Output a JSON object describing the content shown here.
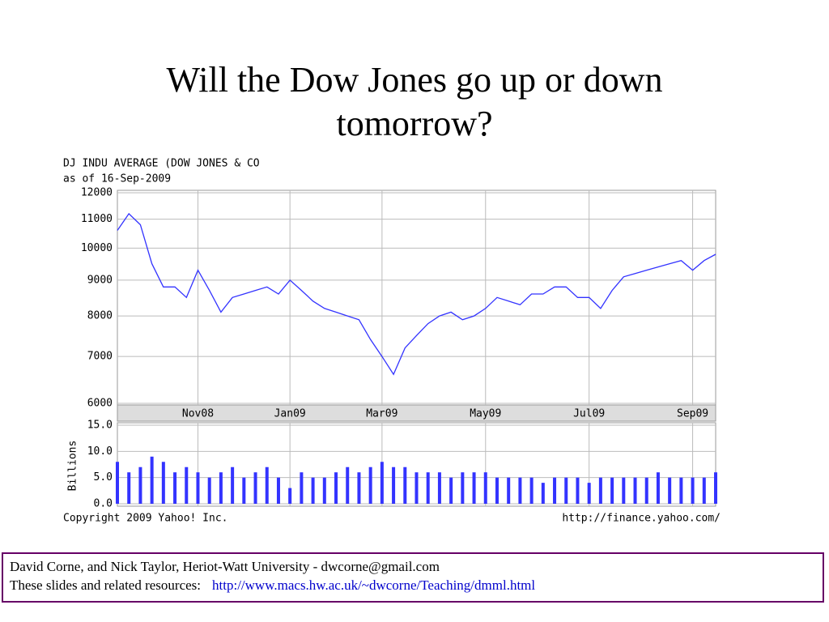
{
  "slide": {
    "title": "Will the Dow Jones go up or down tomorrow?",
    "footer": [
      "David Corne, and Nick Taylor,  Heriot-Watt University  -  dwcorne@gmail.com",
      "These slides and related resources:"
    ],
    "footer_link": "http://www.macs.hw.ac.uk/~dwcorne/Teaching/dmml.html"
  },
  "chart_data": [
    {
      "type": "line",
      "title": "DJ INDU AVERAGE (DOW JONES & CO",
      "subtitle": "as of 16-Sep-2009",
      "categories": [
        null,
        null,
        null,
        null,
        null,
        null,
        null,
        "Nov08",
        null,
        null,
        null,
        null,
        null,
        null,
        null,
        "Jan09",
        null,
        null,
        null,
        null,
        null,
        null,
        null,
        "Mar09",
        null,
        null,
        null,
        null,
        null,
        null,
        null,
        null,
        "May09",
        null,
        null,
        null,
        null,
        null,
        null,
        null,
        null,
        "Jul09",
        null,
        null,
        null,
        null,
        null,
        null,
        null,
        null,
        "Sep09",
        null,
        null
      ],
      "values": [
        10600,
        11200,
        10800,
        9500,
        8800,
        8800,
        8500,
        9300,
        8700,
        8100,
        8500,
        8600,
        8700,
        8800,
        8600,
        9000,
        8700,
        8400,
        8200,
        8100,
        8000,
        7900,
        7400,
        7000,
        6600,
        7200,
        7500,
        7800,
        8000,
        8100,
        7900,
        8000,
        8200,
        8500,
        8400,
        8300,
        8600,
        8600,
        8800,
        8800,
        8500,
        8500,
        8200,
        8700,
        9100,
        9200,
        9300,
        9400,
        9500,
        9600,
        9300,
        9600,
        9800
      ],
      "color": "#3333ff",
      "ylim": [
        6000,
        12000
      ],
      "yticks": [
        6000,
        7000,
        8000,
        9000,
        10000,
        11000,
        12000
      ],
      "log_scale": true,
      "grid": true,
      "source": "Copyright 2009 Yahoo! Inc.",
      "url": "http://finance.yahoo.com/"
    },
    {
      "type": "bar",
      "ylabel": "Billions",
      "values": [
        8,
        6,
        7,
        9,
        8,
        6,
        7,
        6,
        5,
        6,
        7,
        5,
        6,
        7,
        5,
        3,
        6,
        5,
        5,
        6,
        7,
        6,
        7,
        8,
        7,
        7,
        6,
        6,
        6,
        5,
        6,
        6,
        6,
        5,
        5,
        5,
        5,
        4,
        5,
        5,
        5,
        4,
        5,
        5,
        5,
        5,
        5,
        6,
        5,
        5,
        5,
        5,
        6
      ],
      "color": "#3333ff",
      "ylim": [
        0,
        15
      ],
      "yticks": [
        {
          "value": 0,
          "label": "0.0"
        },
        {
          "value": 5,
          "label": "5.0"
        },
        {
          "value": 10,
          "label": "10.0"
        },
        {
          "value": 15,
          "label": "15.0"
        }
      ],
      "grid": true
    }
  ]
}
